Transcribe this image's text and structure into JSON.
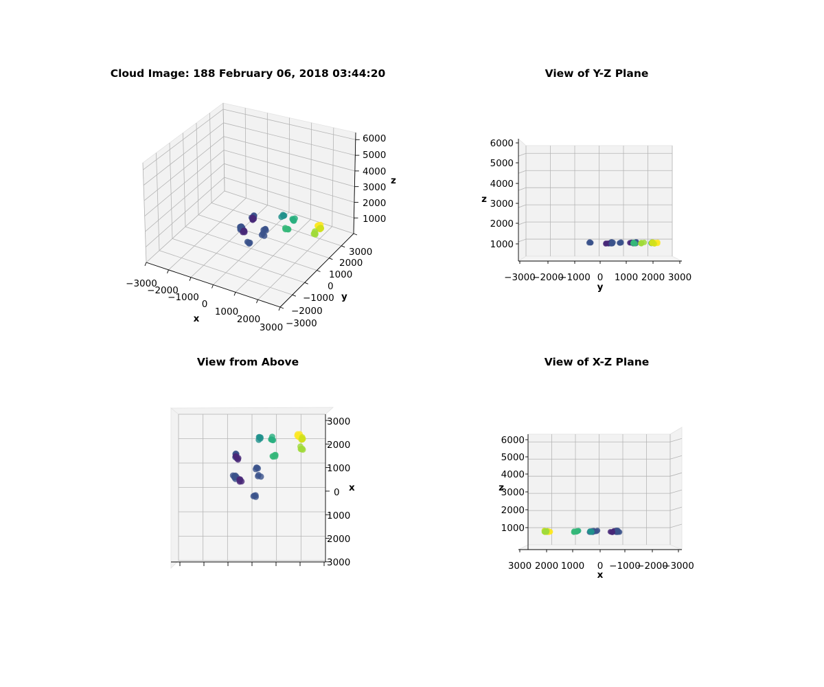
{
  "chart_data": [
    {
      "type": "scatter",
      "projection": "3d-perspective",
      "title": "Cloud Image: 188 February 06, 2018 03:44:20",
      "xlabel": "x",
      "ylabel": "y",
      "zlabel": "z",
      "xlim": [
        -3000,
        3000
      ],
      "ylim": [
        -3000,
        3000
      ],
      "zlim": [
        0,
        6000
      ],
      "x_ticks": [
        "−3000",
        "−2000",
        "−1000",
        "0",
        "1000",
        "2000",
        "3000"
      ],
      "y_ticks": [
        "−3000",
        "−2000",
        "−1000",
        "0",
        "1000",
        "2000",
        "3000"
      ],
      "z_ticks": [
        "1000",
        "2000",
        "3000",
        "4000",
        "5000",
        "6000"
      ],
      "grid": true,
      "colormap": "viridis"
    },
    {
      "type": "scatter",
      "projection": "3d-side-view",
      "title": "View of Y-Z Plane",
      "xlabel": "y",
      "ylabel": "z",
      "xlim": [
        -3000,
        3000
      ],
      "zlim": [
        0,
        6000
      ],
      "x_ticks": [
        "−3000",
        "−2000",
        "−1000",
        "0",
        "1000",
        "2000",
        "3000"
      ],
      "z_ticks": [
        "1000",
        "2000",
        "3000",
        "4000",
        "5000",
        "6000"
      ],
      "grid": true
    },
    {
      "type": "scatter",
      "projection": "3d-top-view",
      "title": "View from Above",
      "ylabel": "x",
      "ylim": [
        -3000,
        3000
      ],
      "y_ticks": [
        "3000",
        "2000",
        "1000",
        "0",
        "1000",
        "2000",
        "3000"
      ],
      "grid": true
    },
    {
      "type": "scatter",
      "projection": "3d-side-view",
      "title": "View of X-Z Plane",
      "xlabel": "x",
      "ylabel": "z",
      "xlim": [
        3000,
        -3000
      ],
      "zlim": [
        0,
        6000
      ],
      "x_ticks": [
        "3000",
        "2000",
        "1000",
        "0",
        "−1000",
        "−2000",
        "−3000"
      ],
      "z_ticks": [
        "1000",
        "2000",
        "3000",
        "4000",
        "5000",
        "6000"
      ],
      "grid": true
    }
  ],
  "clusters": [
    {
      "x": -700,
      "y": 1300,
      "z": 700,
      "n": 7,
      "color": "#3b528b"
    },
    {
      "x": -600,
      "y": 1200,
      "z": 700,
      "n": 5,
      "color": "#482878"
    },
    {
      "x": -700,
      "y": 400,
      "z": 700,
      "n": 9,
      "color": "#3b528b"
    },
    {
      "x": -500,
      "y": 300,
      "z": 700,
      "n": 5,
      "color": "#482878"
    },
    {
      "x": 200,
      "y": 800,
      "z": 700,
      "n": 4,
      "color": "#3b528b"
    },
    {
      "x": 300,
      "y": 500,
      "z": 700,
      "n": 3,
      "color": "#3b528b"
    },
    {
      "x": 100,
      "y": -400,
      "z": 700,
      "n": 4,
      "color": "#3b528b"
    },
    {
      "x": 300,
      "y": 2000,
      "z": 700,
      "n": 5,
      "color": "#21918c"
    },
    {
      "x": 800,
      "y": 2000,
      "z": 700,
      "n": 5,
      "color": "#29af7f"
    },
    {
      "x": 900,
      "y": 1300,
      "z": 700,
      "n": 5,
      "color": "#35b779"
    },
    {
      "x": 1900,
      "y": 2100,
      "z": 700,
      "n": 8,
      "color": "#fde725"
    },
    {
      "x": 2000,
      "y": 2000,
      "z": 700,
      "n": 7,
      "color": "#d0e11c"
    },
    {
      "x": 2000,
      "y": 1600,
      "z": 700,
      "n": 5,
      "color": "#a0da39"
    }
  ]
}
